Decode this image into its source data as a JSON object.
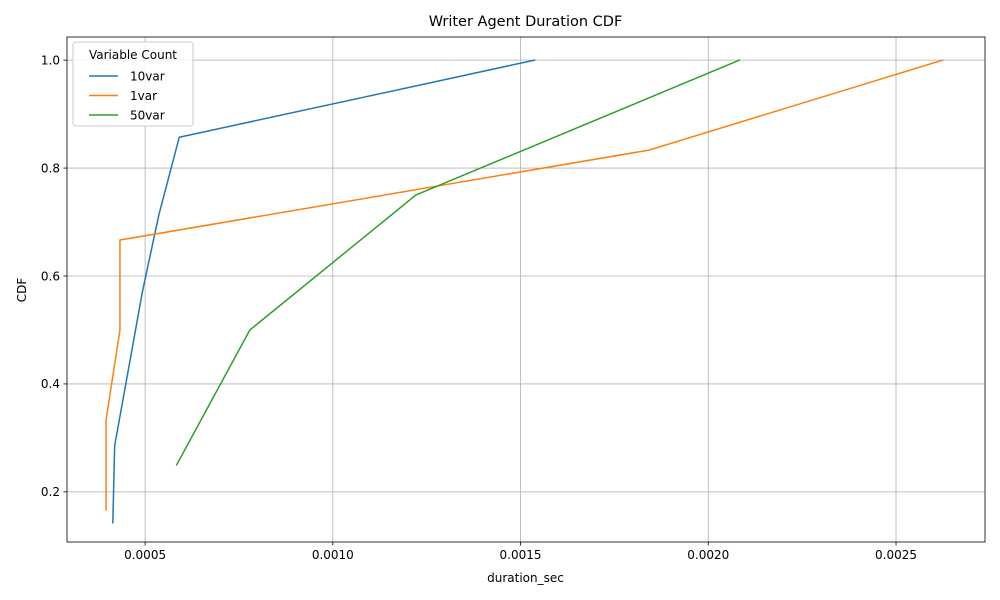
{
  "chart_data": {
    "type": "line",
    "title": "Writer Agent Duration CDF",
    "xlabel": "duration_sec",
    "ylabel": "CDF",
    "xlim": [
      0.000292,
      0.002737
    ],
    "ylim": [
      0.1071,
      1.0429
    ],
    "xticks": [
      0.0005,
      0.001,
      0.0015,
      0.002,
      0.0025
    ],
    "xtick_labels": [
      "0.0005",
      "0.0010",
      "0.0015",
      "0.0020",
      "0.0025"
    ],
    "yticks": [
      0.2,
      0.4,
      0.6,
      0.8,
      1.0
    ],
    "ytick_labels": [
      "0.2",
      "0.4",
      "0.6",
      "0.8",
      "1.0"
    ],
    "grid": true,
    "legend": {
      "title": "Variable Count",
      "position": "top-left"
    },
    "series": [
      {
        "name": "10var",
        "color": "#1f77b4",
        "x": [
          0.000414,
          0.000419,
          0.000493,
          0.000537,
          0.000591,
          0.001537
        ],
        "y": [
          0.1429,
          0.2857,
          0.5714,
          0.7143,
          0.8571,
          1.0
        ]
      },
      {
        "name": "1var",
        "color": "#ff7f0e",
        "x": [
          0.000396,
          0.000396,
          0.000433,
          0.000433,
          0.001842,
          0.002624
        ],
        "y": [
          0.1667,
          0.3333,
          0.5,
          0.6667,
          0.8333,
          1.0
        ]
      },
      {
        "name": "50var",
        "color": "#2ca02c",
        "x": [
          0.000584,
          0.000779,
          0.001221,
          0.002083
        ],
        "y": [
          0.25,
          0.5,
          0.75,
          1.0
        ]
      }
    ]
  }
}
